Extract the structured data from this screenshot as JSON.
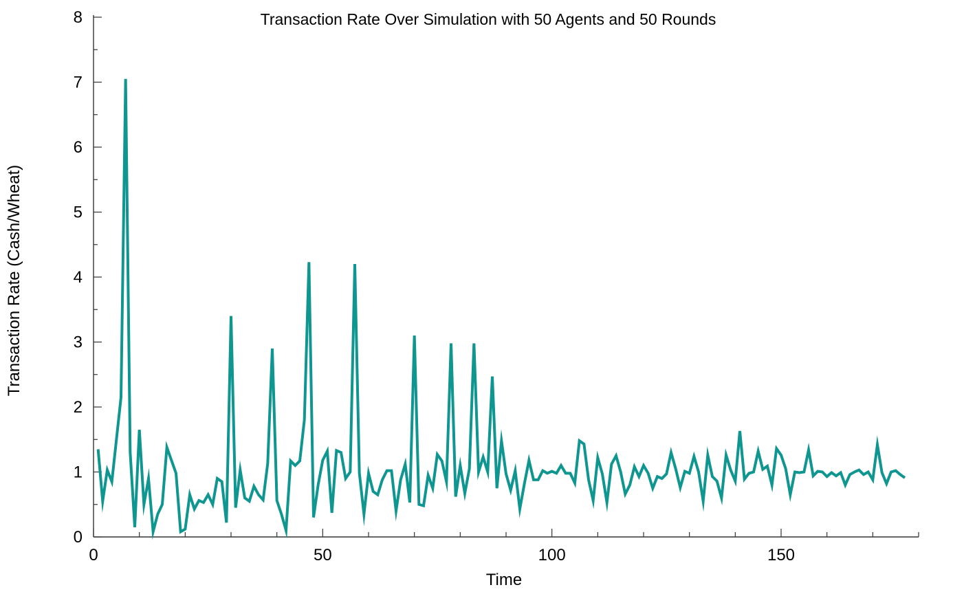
{
  "chart_data": {
    "type": "line",
    "title": "Transaction Rate Over Simulation with 50 Agents and 50 Rounds",
    "xlabel": "Time",
    "ylabel": "Transaction Rate (Cash/Wheat)",
    "xlim": [
      0,
      180
    ],
    "ylim": [
      0,
      8
    ],
    "xticks": [
      0,
      50,
      100,
      150
    ],
    "yticks": [
      0,
      1,
      2,
      3,
      4,
      5,
      6,
      7,
      8
    ],
    "grid": false,
    "line_color": "#0f9690",
    "series": [
      {
        "x": [
          1,
          2,
          3,
          4,
          5,
          6,
          7,
          8,
          9,
          10,
          11,
          12,
          13,
          14,
          15,
          16,
          17,
          18,
          19,
          20,
          21,
          22,
          23,
          24,
          25,
          26,
          27,
          28,
          29,
          30,
          31,
          32,
          33,
          34,
          35,
          36,
          37,
          38,
          39,
          40,
          41,
          42,
          43,
          44,
          45,
          46,
          47,
          48,
          49,
          50,
          51,
          52,
          53,
          54,
          55,
          56,
          57,
          58,
          59,
          60,
          61,
          62,
          63,
          64,
          65,
          66,
          67,
          68,
          69,
          70,
          71,
          72,
          73,
          74,
          75,
          76,
          77,
          78,
          79,
          80,
          81,
          82,
          83,
          84,
          85,
          86,
          87,
          88,
          89,
          90,
          91,
          92,
          93,
          94,
          95,
          96,
          97,
          98,
          99,
          100,
          101,
          102,
          103,
          104,
          105,
          106,
          107,
          108,
          109,
          110,
          111,
          112,
          113,
          114,
          115,
          116,
          117,
          118,
          119,
          120,
          121,
          122,
          123,
          124,
          125,
          126,
          127,
          128,
          129,
          130,
          131,
          132,
          133,
          134,
          135,
          136,
          137,
          138,
          139,
          140,
          141,
          142,
          143,
          144,
          145,
          146,
          147,
          148,
          149,
          150,
          151,
          152,
          153,
          154,
          155,
          156,
          157,
          158,
          159,
          160,
          161,
          162,
          163,
          164,
          165,
          166,
          167,
          168,
          169,
          170,
          171,
          172,
          173,
          174,
          175,
          176,
          177
        ],
        "y": [
          1.35,
          0.55,
          1.03,
          0.85,
          1.5,
          2.15,
          7.05,
          1.3,
          0.15,
          1.65,
          0.5,
          0.9,
          0.08,
          0.35,
          0.5,
          1.38,
          1.18,
          0.98,
          0.08,
          0.12,
          0.65,
          0.43,
          0.56,
          0.53,
          0.65,
          0.5,
          0.9,
          0.85,
          0.22,
          3.4,
          0.45,
          1.03,
          0.6,
          0.55,
          0.78,
          0.65,
          0.57,
          1.13,
          2.9,
          0.56,
          0.35,
          0.1,
          1.17,
          1.1,
          1.17,
          1.8,
          4.23,
          0.3,
          0.8,
          1.18,
          1.32,
          0.37,
          1.33,
          1.3,
          0.9,
          1.0,
          4.2,
          0.98,
          0.35,
          0.98,
          0.7,
          0.65,
          0.88,
          1.02,
          1.02,
          0.4,
          0.88,
          1.12,
          0.53,
          3.1,
          0.5,
          0.48,
          0.95,
          0.75,
          1.27,
          1.17,
          0.85,
          2.98,
          0.62,
          1.1,
          0.67,
          1.05,
          2.98,
          1.0,
          1.23,
          1.0,
          2.47,
          0.75,
          1.48,
          0.97,
          0.72,
          1.02,
          0.43,
          0.82,
          1.18,
          0.88,
          0.88,
          1.02,
          0.98,
          1.01,
          0.98,
          1.1,
          0.98,
          0.98,
          0.83,
          1.48,
          1.43,
          0.88,
          0.56,
          1.22,
          0.97,
          0.53,
          1.12,
          1.25,
          1.0,
          0.66,
          0.8,
          1.08,
          0.93,
          1.1,
          0.98,
          0.75,
          0.93,
          0.9,
          0.97,
          1.3,
          1.05,
          0.76,
          1.01,
          0.98,
          1.24,
          1.0,
          0.55,
          1.26,
          0.93,
          0.86,
          0.6,
          1.26,
          1.03,
          0.86,
          1.63,
          0.89,
          0.98,
          1.0,
          1.32,
          1.04,
          1.09,
          0.8,
          1.36,
          1.26,
          1.05,
          0.65,
          1.0,
          0.99,
          1.0,
          1.34,
          0.94,
          1.01,
          1.0,
          0.93,
          0.99,
          0.94,
          0.99,
          0.8,
          0.96,
          1.0,
          1.03,
          0.96,
          1.0,
          0.88,
          1.42,
          0.99,
          0.82,
          1.0,
          1.02,
          0.96,
          0.91
        ]
      }
    ]
  }
}
